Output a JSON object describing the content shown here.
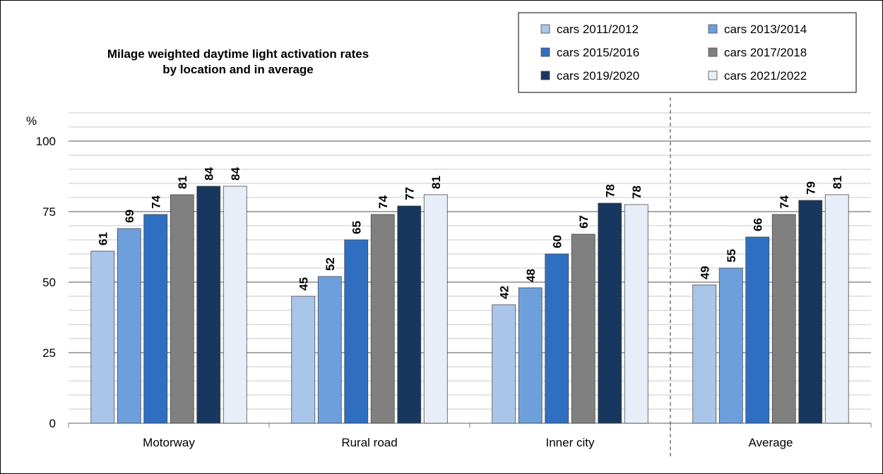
{
  "chart_data": {
    "type": "bar",
    "title_lines": [
      "Milage weighted daytime light activation rates",
      "by location and in average"
    ],
    "ylabel": "%",
    "ylim": [
      0,
      100
    ],
    "yticks": [
      0,
      25,
      50,
      75,
      100
    ],
    "grid": true,
    "legend_position": "top-right",
    "categories": [
      "Motorway",
      "Rural road",
      "Inner city",
      "Average"
    ],
    "separator_before_category": "Average",
    "series": [
      {
        "name": "cars 2011/2012",
        "color": "#a9c6ea",
        "values": [
          61,
          45,
          42,
          49
        ],
        "labels": [
          "61",
          "45",
          "42",
          "49"
        ]
      },
      {
        "name": "cars 2013/2014",
        "color": "#6d9fdc",
        "values": [
          69,
          52,
          48,
          55
        ],
        "labels": [
          "69",
          "52",
          "48",
          "55"
        ]
      },
      {
        "name": "cars 2015/2016",
        "color": "#2f6fc2",
        "values": [
          74,
          65,
          60,
          66
        ],
        "labels": [
          "74",
          "65",
          "60",
          "66"
        ]
      },
      {
        "name": "cars 2017/2018",
        "color": "#808080",
        "values": [
          81,
          74,
          67,
          74
        ],
        "labels": [
          "81",
          "74",
          "67",
          "74"
        ]
      },
      {
        "name": "cars 2019/2020",
        "color": "#17375e",
        "values": [
          84,
          77,
          78,
          79
        ],
        "labels": [
          "84",
          "77",
          "78",
          "79"
        ]
      },
      {
        "name": "cars 2021/2022",
        "color": "#e8eef8",
        "values": [
          84,
          81,
          77.5,
          81
        ],
        "labels": [
          "84",
          "81",
          "78",
          "81"
        ]
      }
    ]
  }
}
